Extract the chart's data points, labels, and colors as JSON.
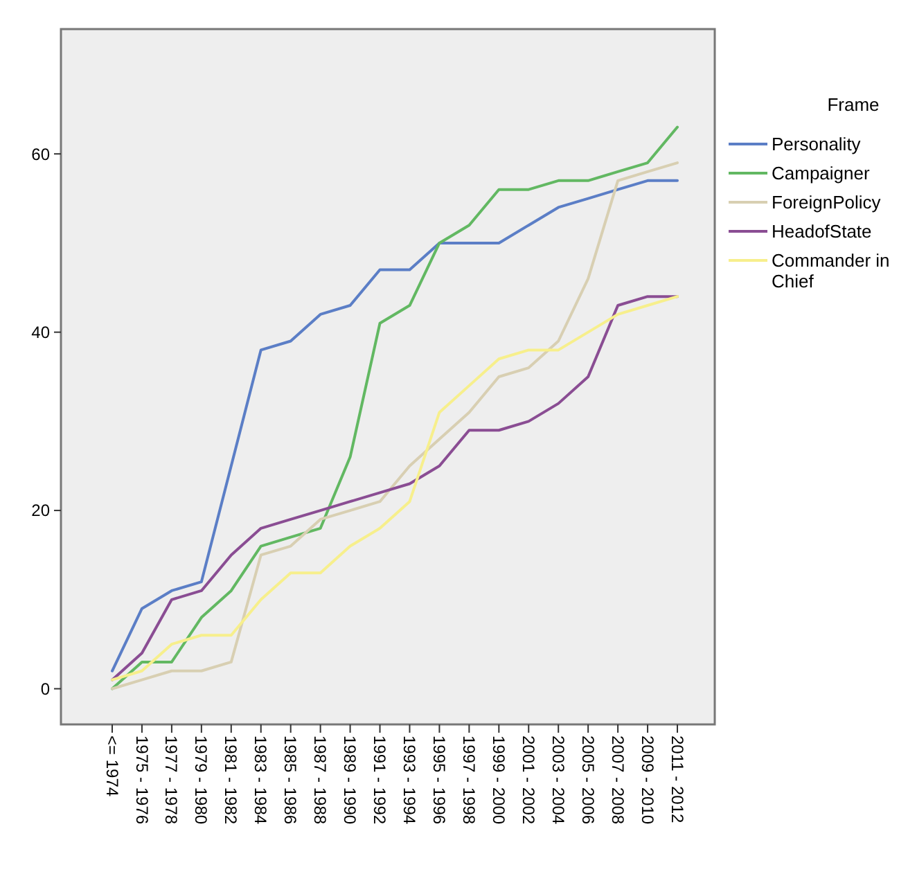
{
  "chart_data": {
    "type": "line",
    "legend_title": "Frame",
    "legend": "right",
    "grid": false,
    "categories": [
      "<= 1974",
      "1975 - 1976",
      "1977 - 1978",
      "1979 - 1980",
      "1981 - 1982",
      "1983 - 1984",
      "1985 - 1986",
      "1987 - 1988",
      "1989 - 1990",
      "1991 - 1992",
      "1993 - 1994",
      "1995 - 1996",
      "1997 - 1998",
      "1999 - 2000",
      "2001 - 2002",
      "2003 - 2004",
      "2005 - 2006",
      "2007 - 2008",
      "2009 - 2010",
      "2011 - 2012"
    ],
    "ylim": [
      -4,
      74
    ],
    "yticks": [
      0,
      20,
      40,
      60
    ],
    "series": [
      {
        "name": "Personality",
        "color": "#5b7ec6",
        "values": [
          2,
          9,
          11,
          12,
          25,
          38,
          39,
          42,
          43,
          47,
          47,
          50,
          50,
          50,
          52,
          54,
          55,
          56,
          57,
          57
        ]
      },
      {
        "name": "Campaigner",
        "color": "#62b862",
        "values": [
          0,
          3,
          3,
          8,
          11,
          16,
          17,
          18,
          26,
          41,
          43,
          50,
          52,
          56,
          56,
          57,
          57,
          58,
          59,
          63
        ]
      },
      {
        "name": "ForeignPolicy",
        "color": "#d8cfb2",
        "values": [
          0,
          1,
          2,
          2,
          3,
          15,
          16,
          19,
          20,
          21,
          25,
          28,
          31,
          35,
          36,
          39,
          46,
          57,
          58,
          59
        ]
      },
      {
        "name": "HeadofState",
        "color": "#8a4d93",
        "values": [
          1,
          4,
          10,
          11,
          15,
          18,
          19,
          20,
          21,
          22,
          23,
          25,
          29,
          29,
          30,
          32,
          35,
          43,
          44,
          44
        ]
      },
      {
        "name": "Commander in Chief",
        "color": "#f7ef8c",
        "values": [
          1,
          2,
          5,
          6,
          6,
          10,
          13,
          13,
          16,
          18,
          21,
          31,
          34,
          37,
          38,
          38,
          40,
          42,
          43,
          44
        ]
      }
    ]
  }
}
